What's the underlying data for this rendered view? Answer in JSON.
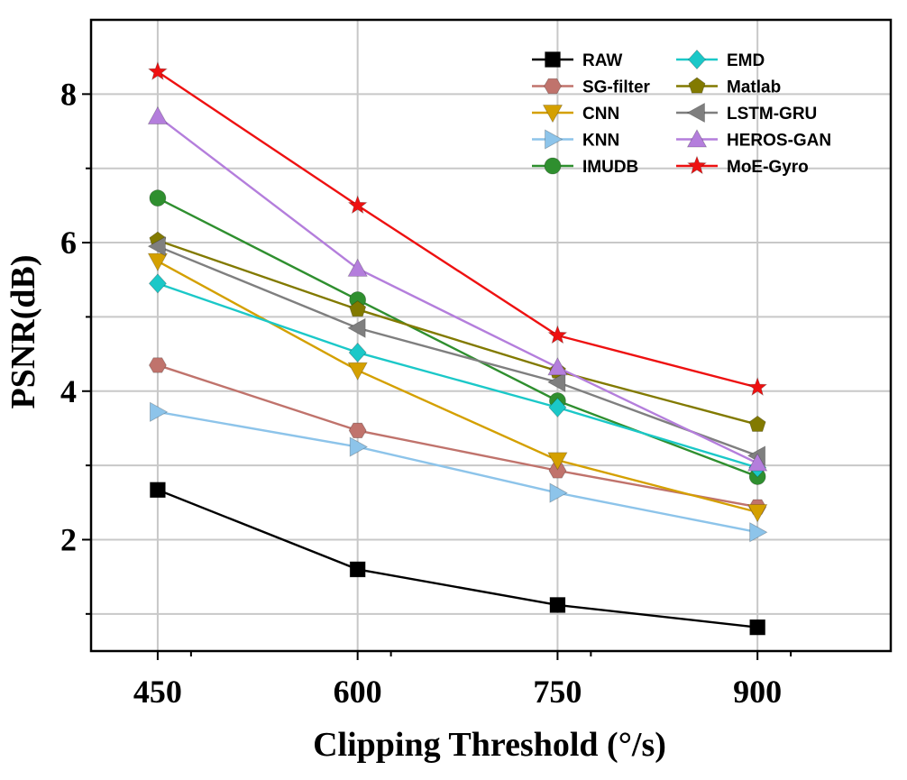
{
  "chart_data": {
    "type": "line",
    "title": "",
    "xlabel": "Clipping Threshold (°/s)",
    "ylabel": "PSNR(dB)",
    "x": [
      450,
      600,
      750,
      900
    ],
    "x_tick_labels": [
      "450",
      "600",
      "750",
      "900"
    ],
    "y_tick_labels": [
      "2",
      "4",
      "6",
      "8"
    ],
    "xlim": [
      400,
      1000
    ],
    "ylim": [
      0.5,
      9.0
    ],
    "grid": true,
    "legend_position": "top-right",
    "series": [
      {
        "name": "RAW",
        "color": "#000000",
        "marker": "square",
        "values": [
          2.67,
          1.6,
          1.12,
          0.82
        ]
      },
      {
        "name": "SG-filter",
        "color": "#c0736c",
        "marker": "hexagon",
        "values": [
          4.35,
          3.47,
          2.93,
          2.44
        ]
      },
      {
        "name": "CNN",
        "color": "#d4a000",
        "marker": "triangle-down",
        "values": [
          5.75,
          4.28,
          3.07,
          2.37
        ]
      },
      {
        "name": "KNN",
        "color": "#8dc4ea",
        "marker": "triangle-right",
        "values": [
          3.72,
          3.25,
          2.63,
          2.1
        ]
      },
      {
        "name": "IMUDB",
        "color": "#2f8f2f",
        "marker": "circle",
        "values": [
          6.6,
          5.23,
          3.87,
          2.85
        ]
      },
      {
        "name": "EMD",
        "color": "#1bc8c8",
        "marker": "diamond",
        "values": [
          5.45,
          4.52,
          3.78,
          2.97
        ]
      },
      {
        "name": "Matlab",
        "color": "#827a00",
        "marker": "pentagon",
        "values": [
          6.03,
          5.1,
          4.27,
          3.55
        ]
      },
      {
        "name": "LSTM-GRU",
        "color": "#7f7f7f",
        "marker": "triangle-left",
        "values": [
          5.95,
          4.85,
          4.12,
          3.13
        ]
      },
      {
        "name": "HEROS-GAN",
        "color": "#b47edc",
        "marker": "triangle-up",
        "values": [
          7.7,
          5.65,
          4.32,
          3.03
        ]
      },
      {
        "name": "MoE-Gyro",
        "color": "#ee1111",
        "marker": "star",
        "values": [
          8.3,
          6.5,
          4.75,
          4.05
        ]
      }
    ]
  }
}
